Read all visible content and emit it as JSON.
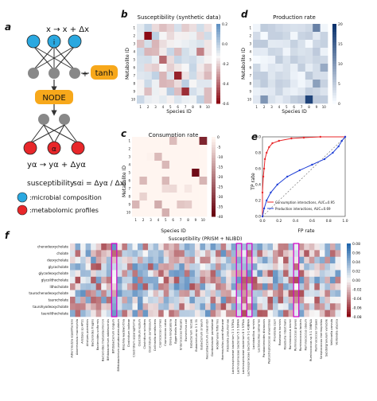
{
  "figure": {
    "panels": {
      "a": {
        "label": "a",
        "equation_top": "x → x + Δx",
        "node_i": "i",
        "tanh_label": "tanh",
        "node_label": "NODE",
        "node_alpha": "α",
        "equation_bottom": "yα → yα + Δyα",
        "susceptibility_label": "susceptibility",
        "susceptibility_formula": "sαi = Δyα / Δxi",
        "legend": [
          {
            "label": ":microbial composition",
            "color": "#2aa8e0"
          },
          {
            "label": ":metabolomic profiles",
            "color": "#e8272a"
          }
        ]
      },
      "b": {
        "label": "b",
        "title": "Susceptibility (synthetic data)",
        "xlabel": "Species ID",
        "ylabel": "Metabolite ID",
        "colorbar_ticks": [
          "0.2",
          "0.0",
          "-0.2",
          "-0.4",
          "-0.6"
        ]
      },
      "c": {
        "label": "c",
        "title": "Consumption rate",
        "xlabel": "Species ID",
        "ylabel": "Metabolite ID",
        "colorbar_ticks": [
          "0",
          "-5",
          "-10",
          "-15",
          "-20",
          "-25",
          "-30",
          "-35",
          "-40"
        ]
      },
      "d": {
        "label": "d",
        "title": "Production rate",
        "xlabel": "Species ID",
        "ylabel": "Metabolite ID",
        "colorbar_ticks": [
          "20",
          "15",
          "10",
          "5",
          "0"
        ]
      },
      "e": {
        "label": "e",
        "xlabel": "FP rate",
        "ylabel": "TP rate",
        "xticks": [
          "0.0",
          "0.2",
          "0.4",
          "0.6",
          "0.8",
          "1.0"
        ],
        "yticks": [
          "0.0",
          "0.2",
          "0.4",
          "0.6",
          "0.8",
          "1.0"
        ],
        "legend": [
          {
            "label": "Consumption interactions, AUC=0.95",
            "color": "#e8272a"
          },
          {
            "label": "Production interactions, AUC=0.69",
            "color": "#1f3fd6"
          }
        ]
      },
      "f": {
        "label": "f",
        "title": "Susceptibility (PRISM + NLIBD)",
        "metabolites": [
          "chenodeoxycholate",
          "cholate",
          "deoxycholate",
          "glycocholate",
          "glycodeoxycholate",
          "glycolithocholate",
          "lithocholate",
          "taurochenodeoxycholate",
          "taurocholate",
          "taurohyodeoxycholate",
          "taurolithocholate"
        ],
        "colorbar_ticks": [
          "0.08",
          "0.06",
          "0.04",
          "0.02",
          "0.00",
          "-0.02",
          "-0.04",
          "-0.06",
          "-0.08"
        ],
        "species": [
          "Adlercreutzia equolifaciens",
          "Akkermansia muciniphila",
          "Alistipes sp AP11",
          "Alistipes putredinis",
          "Bacteroides fragilis",
          "Bacteroides uniformis",
          "Bacteroides thetaiotaomicron",
          "Bifidobacterium adolescentis",
          "Bifidobacterium longum",
          "Bifidobacterium pseudocatenulatum",
          "Bilophila wadsworthia",
          "Clostridium bolteae",
          "Clostridium asparagiforme",
          "Clostridium leptum",
          "Clostridium scindens",
          "Clostridium symbiosum",
          "Collinsella aerofaciens",
          "Coprococcus comes",
          "Coprococcus catus",
          "Dorea longicatena",
          "Eggerthella lenta",
          "Enterococcus faecalis",
          "Escherichia coli",
          "Eubacterium rectale",
          "Eubacterium sp 3 1 31",
          "Eubacterium siraeum",
          "Faecalibacterium prausnitzii",
          "Gordonibacter pamelaeae",
          "Holdemania filiformis",
          "Haemophilus parainfluenzae",
          "Klebsiella pneumoniae",
          "Lachnospiraceae bacterium 3 1 57FAA",
          "Lachnospiraceae bacterium 5 1 63FAA",
          "Lachnospiraceae bacterium 8 1 57FAA",
          "Lachnospiraceae bacterium 9 1 43BFAA",
          "Lactobacillus ruminis",
          "Lactobacillus salivarius",
          "Parabacteroides distasonis",
          "Peptostreptococcus anaerobius",
          "Prevotella copri",
          "Roseburia hominis",
          "Roseburia intestinalis",
          "Ruminococcus bromii",
          "Ruminococcus gnavus",
          "Ruminococcus lactaris",
          "Ruminococcus obeum",
          "Ruminococcus sp 5 1 39BFAA",
          "Ruminococcus torques",
          "Streptococcus thermophilus",
          "Subdoligranulum variabile",
          "Veillonella parvula",
          "Veillonella atypica"
        ],
        "highlighted_species": [
          "Bifidobacterium longum",
          "Lachnospiraceae bacterium 5 1 63FAA",
          "Lachnospiraceae bacterium 9 1 43BFAA",
          "Ruminococcus gnavus"
        ]
      }
    }
  }
}
